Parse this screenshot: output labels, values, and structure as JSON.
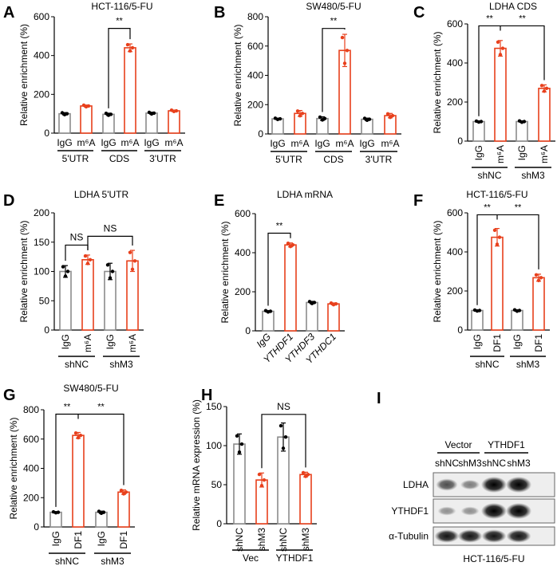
{
  "colors": {
    "control": "#8c8c8c",
    "treatment": "#e8401c",
    "axis": "#000000"
  },
  "chart_data": [
    {
      "panel": "A",
      "type": "bar",
      "title": "HCT-116/5-FU",
      "ylabel": "Relative enrichment  (%)",
      "ylim": [
        0,
        600
      ],
      "yticks": [
        0,
        200,
        400,
        600
      ],
      "categories": [
        "IgG",
        "m⁶A",
        "IgG",
        "m⁶A",
        "IgG",
        "m⁶A"
      ],
      "label_style": "horizontal",
      "groups": [
        {
          "label": "5'UTR",
          "bars": [
            0,
            1
          ]
        },
        {
          "label": "CDS",
          "bars": [
            2,
            3
          ]
        },
        {
          "label": "3'UTR",
          "bars": [
            4,
            5
          ]
        }
      ],
      "values": [
        100,
        140,
        97,
        440,
        103,
        115
      ],
      "errors": [
        6,
        5,
        6,
        20,
        5,
        4
      ],
      "series_type": [
        "control",
        "treatment",
        "control",
        "treatment",
        "control",
        "treatment"
      ],
      "brackets": [
        {
          "from": 2,
          "to": 3,
          "level": 540,
          "label": "**"
        }
      ]
    },
    {
      "panel": "B",
      "type": "bar",
      "title": "SW480/5-FU",
      "ylabel": "Relative enrichment  (%)",
      "ylim": [
        0,
        800
      ],
      "yticks": [
        0,
        200,
        400,
        600,
        800
      ],
      "categories": [
        "IgG",
        "m⁶A",
        "IgG",
        "m⁶A",
        "IgG",
        "m⁶A"
      ],
      "label_style": "horizontal",
      "groups": [
        {
          "label": "5'UTR",
          "bars": [
            0,
            1
          ]
        },
        {
          "label": "CDS",
          "bars": [
            2,
            3
          ]
        },
        {
          "label": "3'UTR",
          "bars": [
            4,
            5
          ]
        }
      ],
      "values": [
        103,
        140,
        105,
        570,
        100,
        125
      ],
      "errors": [
        5,
        20,
        12,
        110,
        8,
        15
      ],
      "series_type": [
        "control",
        "treatment",
        "control",
        "treatment",
        "control",
        "treatment"
      ],
      "brackets": [
        {
          "from": 2,
          "to": 3,
          "level": 720,
          "label": "**"
        }
      ]
    },
    {
      "panel": "C",
      "type": "bar",
      "title": "LDHA CDS",
      "ylabel": "Relative enrichment  (%)",
      "ylim": [
        0,
        600
      ],
      "yticks": [
        0,
        200,
        400,
        600
      ],
      "categories": [
        "IgG",
        "m⁶A",
        "IgG",
        "m⁶A"
      ],
      "label_style": "vertical",
      "groups": [
        {
          "label": "shNC",
          "bars": [
            0,
            1
          ]
        },
        {
          "label": "shM3",
          "bars": [
            2,
            3
          ]
        }
      ],
      "values": [
        100,
        475,
        100,
        270
      ],
      "errors": [
        3,
        40,
        4,
        18
      ],
      "series_type": [
        "control",
        "treatment",
        "control",
        "treatment"
      ],
      "brackets": [
        {
          "from": 0,
          "to": 3,
          "mid": 1,
          "level": 590,
          "labels": [
            "**",
            "**"
          ]
        }
      ]
    },
    {
      "panel": "D",
      "type": "bar",
      "title": "LDHA 5'UTR",
      "ylabel": "Relative enrichment  (%)",
      "ylim": [
        0,
        200
      ],
      "yticks": [
        0,
        50,
        100,
        150,
        200
      ],
      "categories": [
        "IgG",
        "m⁶A",
        "IgG",
        "m⁶A"
      ],
      "label_style": "vertical",
      "groups": [
        {
          "label": "shNC",
          "bars": [
            0,
            1
          ]
        },
        {
          "label": "shM3",
          "bars": [
            2,
            3
          ]
        }
      ],
      "values": [
        100,
        120,
        100,
        118
      ],
      "errors": [
        10,
        8,
        14,
        18
      ],
      "series_type": [
        "control",
        "treatment",
        "control",
        "treatment"
      ],
      "brackets": [
        {
          "from": 0,
          "to": 1,
          "level": 145,
          "label": "NS"
        },
        {
          "from": 1,
          "to": 3,
          "level": 160,
          "label": "NS"
        }
      ]
    },
    {
      "panel": "E",
      "type": "bar",
      "title": "LDHA mRNA",
      "ylabel": "Relative enrichment  (%)",
      "ylim": [
        0,
        600
      ],
      "yticks": [
        0,
        200,
        400,
        600
      ],
      "categories": [
        "IgG",
        "YTHDF1",
        "YTHDF3",
        "YTHDC1"
      ],
      "label_style": "diagonal",
      "groups": [],
      "values": [
        100,
        440,
        145,
        138
      ],
      "errors": [
        4,
        10,
        6,
        5
      ],
      "series_type": [
        "control",
        "treatment",
        "control",
        "treatment"
      ],
      "brackets": [
        {
          "from": 0,
          "to": 1,
          "level": 500,
          "label": "**"
        }
      ]
    },
    {
      "panel": "F",
      "type": "bar",
      "title": "HCT-116/5-FU",
      "ylabel": "Relative enrichment  (%)",
      "ylim": [
        0,
        600
      ],
      "yticks": [
        0,
        200,
        400,
        600
      ],
      "categories": [
        "IgG",
        "DF1",
        "IgG",
        "DF1"
      ],
      "label_style": "vertical",
      "groups": [
        {
          "label": "shNC",
          "bars": [
            0,
            1
          ]
        },
        {
          "label": "shM3",
          "bars": [
            2,
            3
          ]
        }
      ],
      "values": [
        100,
        475,
        100,
        268
      ],
      "errors": [
        3,
        45,
        4,
        18
      ],
      "series_type": [
        "control",
        "treatment",
        "control",
        "treatment"
      ],
      "brackets": [
        {
          "from": 0,
          "to": 3,
          "mid": 1,
          "level": 590,
          "labels": [
            "**",
            "**"
          ]
        }
      ]
    },
    {
      "panel": "G",
      "type": "bar",
      "title": "SW480/5-FU",
      "ylabel": "Relative enrichment  (%)",
      "ylim": [
        0,
        800
      ],
      "yticks": [
        0,
        200,
        400,
        600,
        800
      ],
      "categories": [
        "IgG",
        "DF1",
        "IgG",
        "DF1"
      ],
      "label_style": "vertical",
      "groups": [
        {
          "label": "shNC",
          "bars": [
            0,
            1
          ]
        },
        {
          "label": "shM3",
          "bars": [
            2,
            3
          ]
        }
      ],
      "values": [
        100,
        625,
        100,
        238
      ],
      "errors": [
        4,
        20,
        8,
        15
      ],
      "series_type": [
        "control",
        "treatment",
        "control",
        "treatment"
      ],
      "brackets": [
        {
          "from": 0,
          "to": 3,
          "mid": 1,
          "level": 770,
          "labels": [
            "**",
            "**"
          ]
        }
      ]
    },
    {
      "panel": "H",
      "type": "bar",
      "title": "",
      "ylabel": "Relative mRNA expression (%)",
      "ylim": [
        0,
        150
      ],
      "yticks": [
        0,
        50,
        100,
        150
      ],
      "categories": [
        "shNC",
        "shM3",
        "shNC",
        "shM3"
      ],
      "label_style": "vertical",
      "groups": [
        {
          "label": "Vec",
          "bars": [
            0,
            1
          ]
        },
        {
          "label": "YTHDF1",
          "bars": [
            2,
            3
          ]
        }
      ],
      "values": [
        102,
        56,
        111,
        63
      ],
      "errors": [
        13,
        9,
        18,
        3
      ],
      "series_type": [
        "control",
        "treatment",
        "control",
        "treatment"
      ],
      "brackets": [
        {
          "from": 1,
          "to": 3,
          "level": 140,
          "label": "NS"
        }
      ]
    }
  ],
  "blot": {
    "panel": "I",
    "groups": [
      {
        "label": "Vector",
        "lanes": [
          0,
          1
        ]
      },
      {
        "label": "YTHDF1",
        "lanes": [
          2,
          3
        ]
      }
    ],
    "lanes": [
      "shNC",
      "shM3",
      "shNC",
      "shM3"
    ],
    "rows": [
      {
        "label": "LDHA",
        "intensity": [
          0.6,
          0.35,
          1.0,
          1.0
        ]
      },
      {
        "label": "YTHDF1",
        "intensity": [
          0.25,
          0.25,
          1.0,
          1.0
        ]
      },
      {
        "label": "α-Tubulin",
        "intensity": [
          0.9,
          0.9,
          0.9,
          0.9
        ]
      }
    ],
    "caption": "HCT-116/5-FU"
  }
}
